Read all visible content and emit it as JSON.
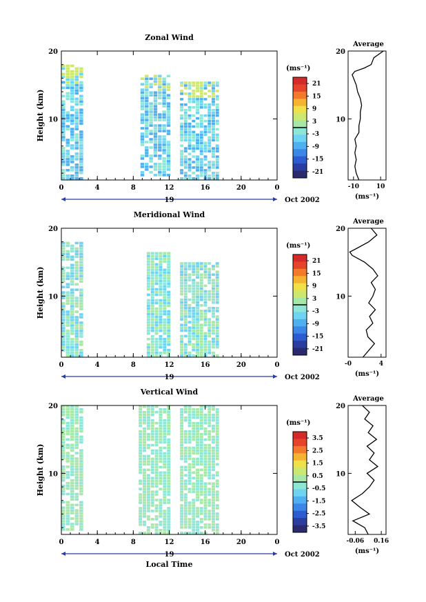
{
  "figure": {
    "xlabel": "Local Time",
    "average_title": "Average",
    "date_label": "Oct 2002",
    "date_tick": "19"
  },
  "chart_data": [
    {
      "type": "heatmap",
      "title": "Zonal Wind",
      "xlabel": "",
      "ylabel": "Height (km)",
      "x_ticks": [
        "0",
        "4",
        "8",
        "12",
        "16",
        "20",
        "0"
      ],
      "y_ticks": [
        "10",
        "20"
      ],
      "xlim": [
        0,
        24
      ],
      "ylim": [
        1,
        20
      ],
      "colorbar": {
        "unit": "(ms⁻¹)",
        "ticks": [
          "21",
          "15",
          "9",
          "3",
          "-3",
          "-9",
          "-15",
          "-21"
        ],
        "range": [
          -24,
          24
        ],
        "zero_line": true
      },
      "data_blocks": [
        {
          "t0": 0.0,
          "t1": 2.5,
          "h0": 1.0,
          "h1": 18.0
        },
        {
          "t0": 8.8,
          "t1": 12.2,
          "h0": 1.5,
          "h1": 16.5
        },
        {
          "t0": 13.2,
          "t1": 17.6,
          "h0": 1.0,
          "h1": 15.5
        }
      ],
      "average": {
        "title": "Average",
        "unit": "(ms⁻¹)",
        "x_ticks": [
          "-10",
          "10"
        ],
        "xlim": [
          -14,
          14
        ],
        "y_ticks": [
          "10",
          "20"
        ],
        "ylim": [
          1,
          20
        ],
        "profile": [
          {
            "h": 1.0,
            "u": -6
          },
          {
            "h": 2.0,
            "u": -8
          },
          {
            "h": 3.0,
            "u": -9
          },
          {
            "h": 4.0,
            "u": -8
          },
          {
            "h": 5.0,
            "u": -9
          },
          {
            "h": 6.0,
            "u": -8
          },
          {
            "h": 7.0,
            "u": -9
          },
          {
            "h": 8.0,
            "u": -6
          },
          {
            "h": 9.0,
            "u": -6
          },
          {
            "h": 10.0,
            "u": -5
          },
          {
            "h": 11.0,
            "u": -5
          },
          {
            "h": 12.0,
            "u": -4
          },
          {
            "h": 13.0,
            "u": -5
          },
          {
            "h": 14.0,
            "u": -7
          },
          {
            "h": 15.0,
            "u": -8
          },
          {
            "h": 16.0,
            "u": -10
          },
          {
            "h": 16.5,
            "u": -11
          },
          {
            "h": 17.0,
            "u": -9
          },
          {
            "h": 17.5,
            "u": -2
          },
          {
            "h": 18.0,
            "u": 3
          },
          {
            "h": 19.0,
            "u": 5
          },
          {
            "h": 20.0,
            "u": 12
          }
        ]
      }
    },
    {
      "type": "heatmap",
      "title": "Meridional Wind",
      "xlabel": "",
      "ylabel": "Height (km)",
      "x_ticks": [
        "0",
        "4",
        "8",
        "12",
        "16",
        "20",
        "0"
      ],
      "y_ticks": [
        "10",
        "20"
      ],
      "xlim": [
        0,
        24
      ],
      "ylim": [
        1,
        20
      ],
      "colorbar": {
        "unit": "(ms⁻¹)",
        "ticks": [
          "21",
          "15",
          "9",
          "3",
          "-3",
          "-9",
          "-15",
          "-21"
        ],
        "range": [
          -24,
          24
        ],
        "zero_line": true
      },
      "data_blocks": [
        {
          "t0": 0.0,
          "t1": 2.5,
          "h0": 1.0,
          "h1": 18.0
        },
        {
          "t0": 9.5,
          "t1": 12.2,
          "h0": 1.0,
          "h1": 16.5
        },
        {
          "t0": 13.2,
          "t1": 17.6,
          "h0": 1.0,
          "h1": 15.0
        }
      ],
      "average": {
        "title": "Average",
        "unit": "(ms⁻¹)",
        "x_ticks": [
          "-0",
          "4"
        ],
        "xlim": [
          0,
          4.6
        ],
        "y_ticks": [
          "10",
          "20"
        ],
        "ylim": [
          1,
          20
        ],
        "profile": [
          {
            "h": 1.0,
            "v": 1.8
          },
          {
            "h": 2.0,
            "v": 2.5
          },
          {
            "h": 3.0,
            "v": 3.2
          },
          {
            "h": 4.0,
            "v": 2.4
          },
          {
            "h": 5.0,
            "v": 2.2
          },
          {
            "h": 6.0,
            "v": 3.0
          },
          {
            "h": 7.0,
            "v": 2.6
          },
          {
            "h": 8.0,
            "v": 3.3
          },
          {
            "h": 9.0,
            "v": 2.5
          },
          {
            "h": 10.0,
            "v": 3.0
          },
          {
            "h": 11.0,
            "v": 3.3
          },
          {
            "h": 12.0,
            "v": 2.8
          },
          {
            "h": 13.0,
            "v": 3.6
          },
          {
            "h": 14.0,
            "v": 3.0
          },
          {
            "h": 15.0,
            "v": 2.0
          },
          {
            "h": 16.0,
            "v": 0.5
          },
          {
            "h": 16.5,
            "v": 0.2
          },
          {
            "h": 17.0,
            "v": 1.0
          },
          {
            "h": 18.0,
            "v": 2.5
          },
          {
            "h": 19.0,
            "v": 3.5
          },
          {
            "h": 20.0,
            "v": 2.8
          }
        ]
      }
    },
    {
      "type": "heatmap",
      "title": "Vertical Wind",
      "xlabel": "Local Time",
      "ylabel": "Height (km)",
      "x_ticks": [
        "0",
        "4",
        "8",
        "12",
        "16",
        "20",
        "0"
      ],
      "y_ticks": [
        "10",
        "20"
      ],
      "xlim": [
        0,
        24
      ],
      "ylim": [
        1,
        20
      ],
      "colorbar": {
        "unit": "(ms⁻¹)",
        "ticks": [
          "3.5",
          "2.5",
          "1.5",
          "0.5",
          "-0.5",
          "-1.5",
          "-2.5",
          "-3.5"
        ],
        "range": [
          -4,
          4
        ],
        "zero_line": true
      },
      "data_blocks": [
        {
          "t0": 0.0,
          "t1": 2.5,
          "h0": 1.5,
          "h1": 20.0
        },
        {
          "t0": 8.6,
          "t1": 12.2,
          "h0": 1.0,
          "h1": 20.0
        },
        {
          "t0": 13.2,
          "t1": 17.6,
          "h0": 1.0,
          "h1": 20.0
        }
      ],
      "average": {
        "title": "Average",
        "unit": "(ms⁻¹)",
        "x_ticks": [
          "-0.06",
          "0.16"
        ],
        "xlim": [
          -0.12,
          0.2
        ],
        "y_ticks": [
          "10",
          "20"
        ],
        "ylim": [
          1,
          20
        ],
        "profile": [
          {
            "h": 1.0,
            "w": 0.05
          },
          {
            "h": 2.0,
            "w": 0.02
          },
          {
            "h": 3.0,
            "w": -0.08
          },
          {
            "h": 4.0,
            "w": 0.06
          },
          {
            "h": 5.0,
            "w": -0.02
          },
          {
            "h": 6.0,
            "w": -0.09
          },
          {
            "h": 7.0,
            "w": 0.0
          },
          {
            "h": 8.0,
            "w": 0.06
          },
          {
            "h": 9.0,
            "w": 0.1
          },
          {
            "h": 10.0,
            "w": 0.04
          },
          {
            "h": 11.0,
            "w": 0.13
          },
          {
            "h": 12.0,
            "w": 0.06
          },
          {
            "h": 13.0,
            "w": 0.1
          },
          {
            "h": 14.0,
            "w": 0.04
          },
          {
            "h": 15.0,
            "w": 0.12
          },
          {
            "h": 16.0,
            "w": 0.05
          },
          {
            "h": 17.0,
            "w": 0.09
          },
          {
            "h": 18.0,
            "w": 0.02
          },
          {
            "h": 19.0,
            "w": 0.06
          },
          {
            "h": 20.0,
            "w": 0.0
          }
        ]
      }
    }
  ]
}
